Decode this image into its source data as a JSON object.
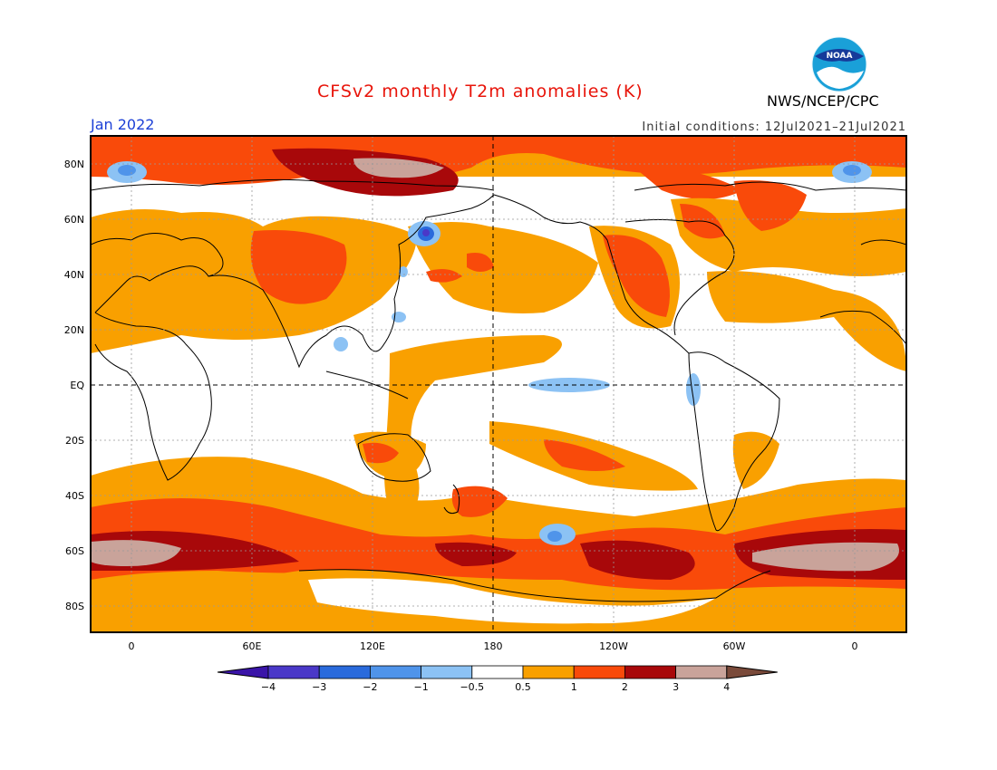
{
  "title": "CFSv2 monthly T2m anomalies (K)",
  "valid_month": "Jan 2022",
  "initial_conditions": "Initial conditions: 12Jul2021–21Jul2021",
  "agency": "NWS/NCEP/CPC",
  "logo_text": "NOAA",
  "lat_labels": [
    "80N",
    "60N",
    "40N",
    "20N",
    "EQ",
    "20S",
    "40S",
    "60S",
    "80S"
  ],
  "lon_labels": [
    "0",
    "60E",
    "120E",
    "180",
    "120W",
    "60W",
    "0"
  ],
  "colorbar": {
    "ticks": [
      "−4",
      "−3",
      "−2",
      "−1",
      "−0.5",
      "0.5",
      "1",
      "2",
      "3",
      "4"
    ],
    "colors": [
      "#3a14a8",
      "#4a38c8",
      "#2a6adc",
      "#4f94ea",
      "#8cc2f4",
      "#ffffff",
      "#f9a000",
      "#f94a0a",
      "#a8080a",
      "#c9a39a",
      "#7a4a3a"
    ]
  }
}
